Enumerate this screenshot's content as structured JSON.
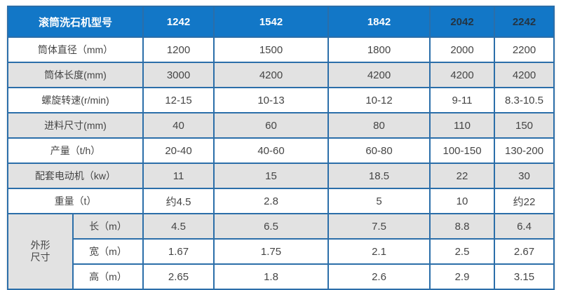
{
  "table": {
    "header": {
      "label": "滚筒洗石机型号",
      "models": [
        "1242",
        "1542",
        "1842",
        "2042",
        "2242"
      ]
    },
    "rows": [
      {
        "label": "筒体直径（mm）",
        "shade": false,
        "values": [
          "1200",
          "1500",
          "1800",
          "2000",
          "2200"
        ]
      },
      {
        "label": "筒体长度(mm)",
        "shade": true,
        "values": [
          "3000",
          "4200",
          "4200",
          "4200",
          "4200"
        ]
      },
      {
        "label": "螺旋转速(r/min)",
        "shade": false,
        "values": [
          "12-15",
          "10-13",
          "10-12",
          "9-11",
          "8.3-10.5"
        ]
      },
      {
        "label": "进料尺寸(mm)",
        "shade": true,
        "values": [
          "40",
          "60",
          "80",
          "110",
          "150"
        ]
      },
      {
        "label": "产量（t/h）",
        "shade": false,
        "values": [
          "20-40",
          "40-60",
          "60-80",
          "100-150",
          "130-200"
        ]
      },
      {
        "label": "配套电动机（kw）",
        "shade": true,
        "values": [
          "11",
          "15",
          "18.5",
          "22",
          "30"
        ]
      },
      {
        "label": "重量（t）",
        "shade": false,
        "values": [
          "约4.5",
          "2.8",
          "5",
          "10",
          "约22"
        ]
      }
    ],
    "dimension_group": {
      "label_line1": "外形",
      "label_line2": "尺寸",
      "rows": [
        {
          "label": "长（m）",
          "shade": true,
          "values": [
            "4.5",
            "6.5",
            "7.5",
            "8.8",
            "6.4"
          ]
        },
        {
          "label": "宽（m）",
          "shade": false,
          "values": [
            "1.67",
            "1.75",
            "2.1",
            "2.5",
            "2.67"
          ]
        },
        {
          "label": "高（m）",
          "shade": false,
          "values": [
            "2.65",
            "1.8",
            "2.6",
            "2.9",
            "3.15"
          ]
        }
      ]
    },
    "colors": {
      "header_bg": "#1277c7",
      "border_blue": "#2b6ea9",
      "shade_bg": "#e2e2e2",
      "header_text_light": "#ffffff",
      "header_text_dark": "#243442",
      "body_text": "#454545"
    }
  }
}
